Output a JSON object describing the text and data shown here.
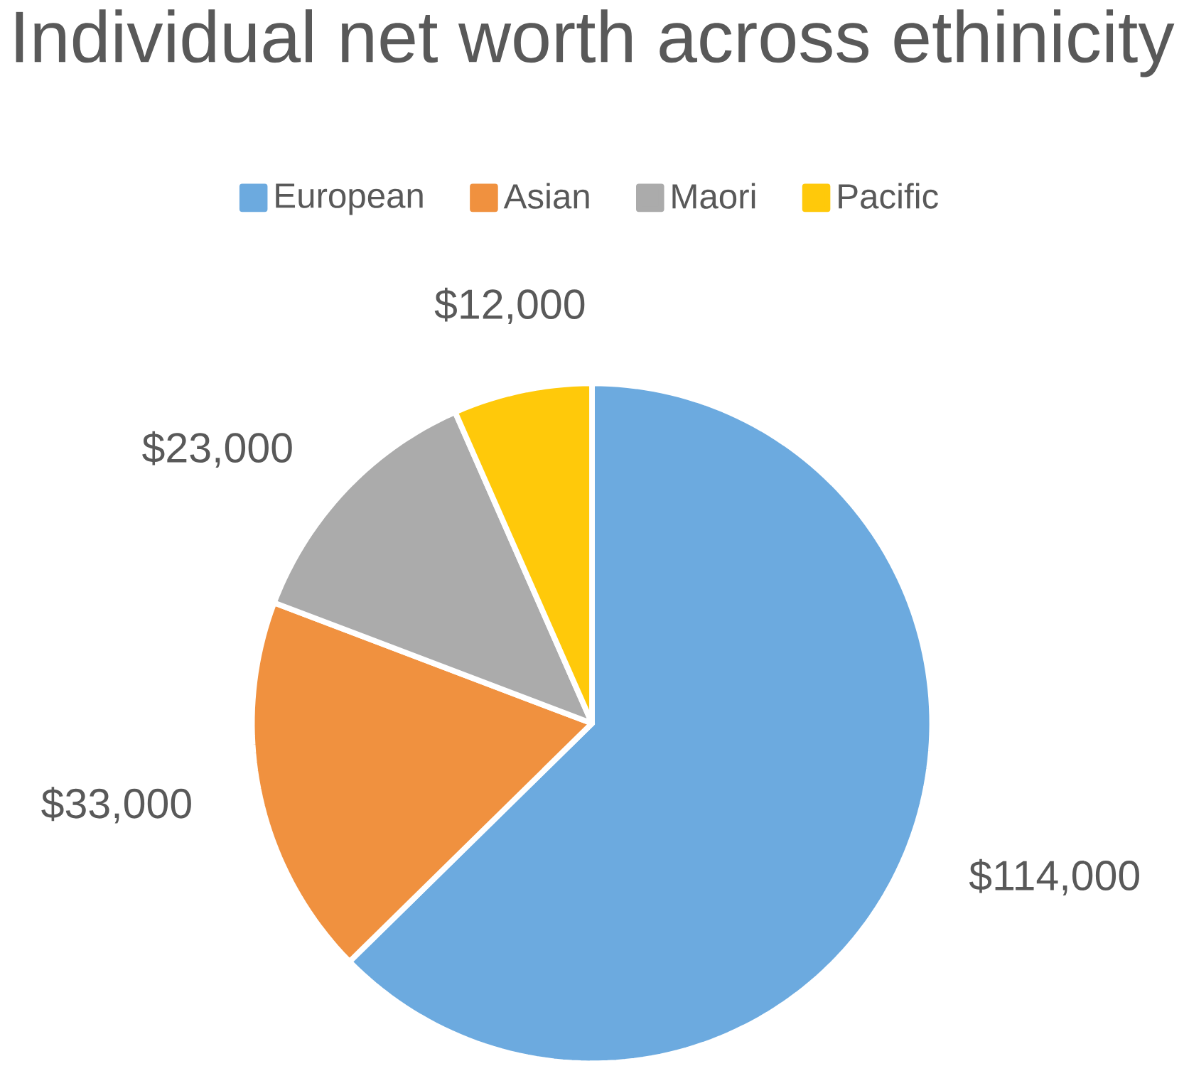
{
  "chart_data": {
    "type": "pie",
    "title": "Individual net worth across ethinicity",
    "categories": [
      "European",
      "Asian",
      "Maori",
      "Pacific"
    ],
    "values": [
      114000,
      33000,
      23000,
      12000
    ],
    "value_labels": [
      "$114,000",
      "$33,000",
      "$23,000",
      "$12,000"
    ],
    "colors": [
      "#6CAADF",
      "#F0913F",
      "#ABABAB",
      "#FFC90A"
    ],
    "legend": "top"
  }
}
